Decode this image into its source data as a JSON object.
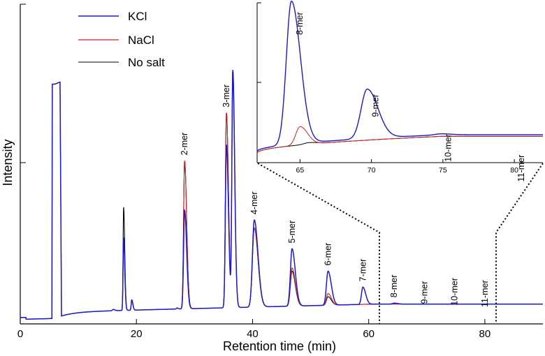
{
  "chart_data": {
    "type": "line",
    "xlabel": "Retention time (min)",
    "ylabel": "Intensity",
    "xlim": [
      0,
      90
    ],
    "ylim": [
      0,
      1
    ],
    "x_ticks": [
      0,
      20,
      40,
      60,
      80
    ],
    "legend_position": "top-left",
    "series": [
      {
        "name": "KCl",
        "color": "#1a1acc"
      },
      {
        "name": "NaCl",
        "color": "#d81e1e"
      },
      {
        "name": "No salt",
        "color": "#000000"
      }
    ],
    "peaks": [
      {
        "x": 5.8,
        "KCl": 0.75,
        "NaCl": 0.75,
        "No salt": 0.75,
        "width": 0.9,
        "kind": "block"
      },
      {
        "x": 16.0,
        "KCl": 0.045,
        "NaCl": 0.045,
        "No salt": 0.045,
        "width": 0.18
      },
      {
        "x": 17.8,
        "KCl": 0.27,
        "NaCl": 0.27,
        "No salt": 0.365,
        "width": 0.12
      },
      {
        "x": 19.2,
        "KCl": 0.075,
        "NaCl": 0.075,
        "No salt": 0.075,
        "width": 0.12
      },
      {
        "x": 27.0,
        "KCl": 0.05,
        "NaCl": 0.05,
        "No salt": 0.05,
        "width": 0.12
      },
      {
        "x": 28.3,
        "KCl": 0.355,
        "NaCl": 0.51,
        "No salt": 0.51,
        "width": 0.22,
        "label": "2-mer"
      },
      {
        "x": 35.5,
        "KCl": 0.56,
        "NaCl": 0.66,
        "No salt": 0.66,
        "width": 0.22,
        "label": "3-mer"
      },
      {
        "x": 36.6,
        "KCl": 0.79,
        "NaCl": 0.79,
        "No salt": 0.79,
        "width": 0.2
      },
      {
        "x": 40.3,
        "KCl": 0.325,
        "NaCl": 0.3,
        "No salt": 0.3,
        "width": 0.4,
        "label": "4-mer"
      },
      {
        "x": 46.8,
        "KCl": 0.235,
        "NaCl": 0.175,
        "No salt": 0.165,
        "width": 0.35,
        "label": "5-mer"
      },
      {
        "x": 53.0,
        "KCl": 0.165,
        "NaCl": 0.095,
        "No salt": 0.085,
        "width": 0.35,
        "label": "6-mer"
      },
      {
        "x": 59.0,
        "KCl": 0.115,
        "NaCl": 0.05,
        "No salt": 0.045,
        "width": 0.3,
        "label": "7-mer"
      },
      {
        "x": 64.4,
        "KCl": 0.065,
        "NaCl": 0.035,
        "No salt": 0.03,
        "width": 0.35,
        "label": "8-mer"
      },
      {
        "x": 69.6,
        "KCl": 0.045,
        "NaCl": 0.035,
        "No salt": 0.035,
        "width": 0.4,
        "label": "9-mer"
      },
      {
        "x": 74.8,
        "KCl": 0.04,
        "NaCl": 0.035,
        "No salt": 0.035,
        "width": 0.4,
        "label": "10-mer"
      },
      {
        "x": 80.0,
        "KCl": 0.035,
        "NaCl": 0.035,
        "No salt": 0.035,
        "width": 0.5,
        "label": "11-mer"
      }
    ],
    "inset": {
      "xlim": [
        62,
        82
      ],
      "ylim": [
        0,
        0.2
      ],
      "x_ticks": [
        65,
        70,
        75,
        80
      ],
      "zoom_range": [
        62,
        82
      ],
      "peaks": [
        {
          "x": 63.2,
          "KCl": 0.013,
          "NaCl": 0.006,
          "No salt": 0.006,
          "width": 0.4
        },
        {
          "x": 64.4,
          "KCl": 0.202,
          "NaCl": 0.0,
          "No salt": 0.0,
          "width": 0.42,
          "label": "8-mer"
        },
        {
          "x": 65.0,
          "KCl": 0.0,
          "NaCl": 0.045,
          "No salt": 0.0,
          "width": 0.35
        },
        {
          "x": 65.6,
          "KCl": 0.0,
          "NaCl": 0.0,
          "No salt": 0.025,
          "width": 0.4
        },
        {
          "x": 69.7,
          "KCl": 0.092,
          "NaCl": 0.0,
          "No salt": 0.0,
          "width": 0.5,
          "label": "9-mer"
        },
        {
          "x": 70.6,
          "KCl": 0.0,
          "NaCl": 0.012,
          "No salt": 0.01,
          "width": 0.5
        },
        {
          "x": 74.8,
          "KCl": 0.036,
          "NaCl": 0.0,
          "No salt": 0.0,
          "width": 0.45,
          "label": "10-mer"
        },
        {
          "x": 79.9,
          "KCl": 0.011,
          "NaCl": 0.0,
          "No salt": 0.0,
          "width": 0.55,
          "label": "11-mer"
        }
      ]
    }
  }
}
